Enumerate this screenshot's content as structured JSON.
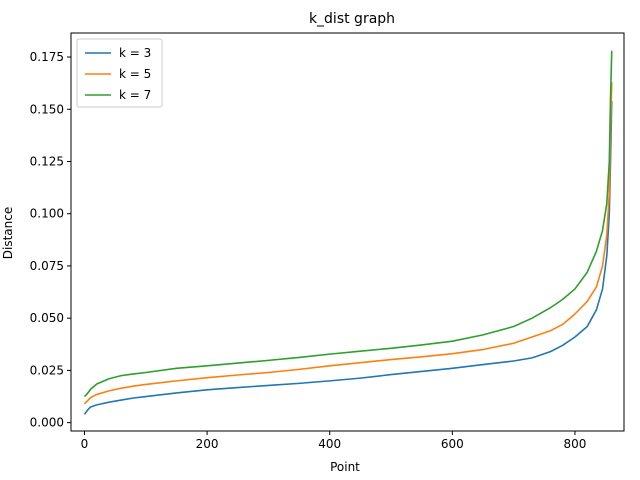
{
  "chart_data": {
    "type": "line",
    "title": "k_dist graph",
    "xlabel": "Point",
    "ylabel": "Distance",
    "xlim": [
      -22,
      880
    ],
    "ylim": [
      -0.004,
      0.1865
    ],
    "xticks": [
      0,
      200,
      400,
      600,
      800
    ],
    "xtick_labels": [
      "0",
      "200",
      "400",
      "600",
      "800"
    ],
    "yticks": [
      0.0,
      0.025,
      0.05,
      0.075,
      0.1,
      0.125,
      0.15,
      0.175
    ],
    "ytick_labels": [
      "0.000",
      "0.025",
      "0.050",
      "0.075",
      "0.100",
      "0.125",
      "0.150",
      "0.175"
    ],
    "grid": false,
    "legend_position": "top-left",
    "series": [
      {
        "name": "k = 3",
        "color": "#1f77b4",
        "points": [
          [
            0,
            0.004
          ],
          [
            5,
            0.006
          ],
          [
            10,
            0.0075
          ],
          [
            20,
            0.0085
          ],
          [
            40,
            0.0098
          ],
          [
            60,
            0.0108
          ],
          [
            80,
            0.0118
          ],
          [
            100,
            0.0125
          ],
          [
            150,
            0.0142
          ],
          [
            200,
            0.0157
          ],
          [
            250,
            0.0168
          ],
          [
            300,
            0.0178
          ],
          [
            350,
            0.0188
          ],
          [
            400,
            0.02
          ],
          [
            450,
            0.0213
          ],
          [
            500,
            0.023
          ],
          [
            550,
            0.0245
          ],
          [
            600,
            0.026
          ],
          [
            650,
            0.0278
          ],
          [
            700,
            0.0295
          ],
          [
            730,
            0.031
          ],
          [
            760,
            0.034
          ],
          [
            780,
            0.037
          ],
          [
            800,
            0.041
          ],
          [
            820,
            0.046
          ],
          [
            835,
            0.054
          ],
          [
            845,
            0.064
          ],
          [
            852,
            0.08
          ],
          [
            856,
            0.1
          ],
          [
            858,
            0.125
          ],
          [
            860,
            0.154
          ]
        ]
      },
      {
        "name": "k = 5",
        "color": "#ff7f0e",
        "points": [
          [
            0,
            0.009
          ],
          [
            5,
            0.0105
          ],
          [
            10,
            0.012
          ],
          [
            20,
            0.0135
          ],
          [
            40,
            0.0152
          ],
          [
            60,
            0.0165
          ],
          [
            80,
            0.0175
          ],
          [
            100,
            0.0183
          ],
          [
            150,
            0.02
          ],
          [
            200,
            0.0215
          ],
          [
            250,
            0.0228
          ],
          [
            300,
            0.024
          ],
          [
            350,
            0.0255
          ],
          [
            400,
            0.0272
          ],
          [
            450,
            0.0287
          ],
          [
            500,
            0.0302
          ],
          [
            550,
            0.0315
          ],
          [
            600,
            0.033
          ],
          [
            650,
            0.035
          ],
          [
            700,
            0.038
          ],
          [
            730,
            0.041
          ],
          [
            760,
            0.044
          ],
          [
            780,
            0.047
          ],
          [
            800,
            0.052
          ],
          [
            820,
            0.058
          ],
          [
            835,
            0.065
          ],
          [
            845,
            0.075
          ],
          [
            852,
            0.09
          ],
          [
            856,
            0.11
          ],
          [
            858,
            0.14
          ],
          [
            860,
            0.163
          ]
        ]
      },
      {
        "name": "k = 7",
        "color": "#2ca02c",
        "points": [
          [
            0,
            0.0125
          ],
          [
            5,
            0.014
          ],
          [
            10,
            0.016
          ],
          [
            20,
            0.0185
          ],
          [
            40,
            0.021
          ],
          [
            60,
            0.0225
          ],
          [
            80,
            0.0233
          ],
          [
            100,
            0.024
          ],
          [
            150,
            0.026
          ],
          [
            200,
            0.0272
          ],
          [
            250,
            0.0285
          ],
          [
            300,
            0.0298
          ],
          [
            350,
            0.0312
          ],
          [
            400,
            0.0328
          ],
          [
            450,
            0.0342
          ],
          [
            500,
            0.0356
          ],
          [
            550,
            0.0372
          ],
          [
            600,
            0.039
          ],
          [
            650,
            0.042
          ],
          [
            700,
            0.046
          ],
          [
            730,
            0.05
          ],
          [
            760,
            0.055
          ],
          [
            780,
            0.059
          ],
          [
            800,
            0.064
          ],
          [
            820,
            0.072
          ],
          [
            835,
            0.082
          ],
          [
            845,
            0.092
          ],
          [
            852,
            0.105
          ],
          [
            856,
            0.125
          ],
          [
            858,
            0.155
          ],
          [
            860,
            0.178
          ]
        ]
      }
    ]
  }
}
